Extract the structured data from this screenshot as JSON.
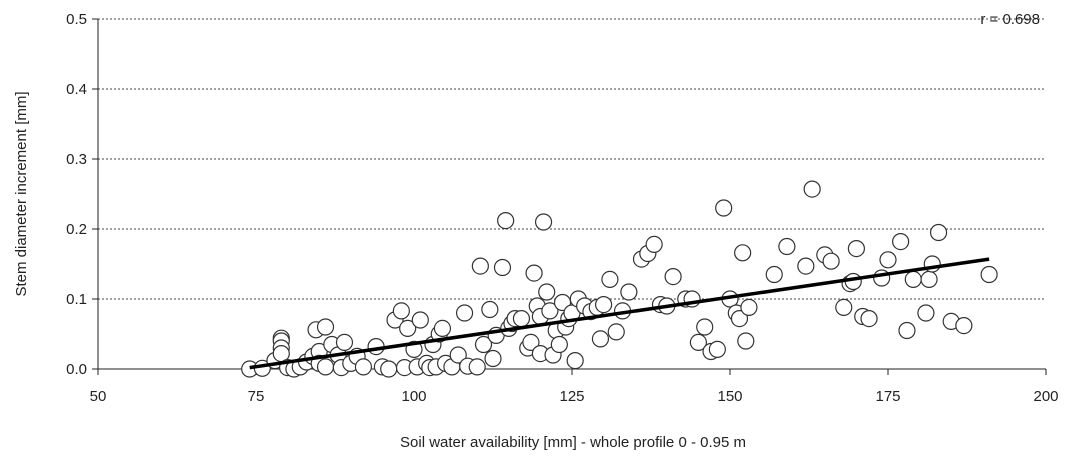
{
  "chart_data": {
    "type": "scatter",
    "xlabel": "Soil water availability [mm]  - whole profile 0 - 0.95 m",
    "ylabel": "Stem diameter increment [mm]",
    "xlim": [
      50,
      200
    ],
    "ylim": [
      0,
      0.5
    ],
    "xticks": [
      50,
      75,
      100,
      125,
      150,
      175,
      200
    ],
    "yticks": [
      0.0,
      0.1,
      0.2,
      0.3,
      0.4,
      0.5
    ],
    "xtick_labels": [
      "50",
      "75",
      "100",
      "125",
      "150",
      "175",
      "200"
    ],
    "ytick_labels": [
      "0.0",
      "0.1",
      "0.2",
      "0.3",
      "0.4",
      "0.5"
    ],
    "grid": "horizontal dashed",
    "annotation": "r = 0.698",
    "trendline": {
      "x": [
        74,
        191
      ],
      "y": [
        0.002,
        0.157
      ]
    },
    "points": [
      [
        74,
        0.0
      ],
      [
        76,
        0.001
      ],
      [
        78,
        0.012
      ],
      [
        79,
        0.044
      ],
      [
        79,
        0.04
      ],
      [
        79,
        0.03
      ],
      [
        79,
        0.022
      ],
      [
        80,
        0.002
      ],
      [
        81,
        0.0
      ],
      [
        82,
        0.003
      ],
      [
        83,
        0.01
      ],
      [
        84,
        0.018
      ],
      [
        84.5,
        0.056
      ],
      [
        85,
        0.025
      ],
      [
        85,
        0.008
      ],
      [
        86,
        0.06
      ],
      [
        86,
        0.003
      ],
      [
        87,
        0.035
      ],
      [
        88,
        0.02
      ],
      [
        88.5,
        0.002
      ],
      [
        89,
        0.038
      ],
      [
        90,
        0.008
      ],
      [
        91,
        0.018
      ],
      [
        92,
        0.003
      ],
      [
        94,
        0.032
      ],
      [
        95,
        0.003
      ],
      [
        96,
        0.0
      ],
      [
        97,
        0.07
      ],
      [
        98,
        0.083
      ],
      [
        98.5,
        0.002
      ],
      [
        99,
        0.058
      ],
      [
        100,
        0.028
      ],
      [
        100.5,
        0.003
      ],
      [
        101,
        0.07
      ],
      [
        102,
        0.008
      ],
      [
        102.5,
        0.002
      ],
      [
        103,
        0.035
      ],
      [
        103.5,
        0.003
      ],
      [
        104,
        0.05
      ],
      [
        104.5,
        0.058
      ],
      [
        105,
        0.008
      ],
      [
        106,
        0.003
      ],
      [
        107,
        0.02
      ],
      [
        108,
        0.08
      ],
      [
        108.5,
        0.004
      ],
      [
        110,
        0.003
      ],
      [
        110.5,
        0.147
      ],
      [
        111,
        0.035
      ],
      [
        112,
        0.085
      ],
      [
        112.5,
        0.015
      ],
      [
        113,
        0.048
      ],
      [
        114,
        0.145
      ],
      [
        114.5,
        0.212
      ],
      [
        115,
        0.058
      ],
      [
        115.5,
        0.065
      ],
      [
        116,
        0.072
      ],
      [
        117,
        0.072
      ],
      [
        118,
        0.03
      ],
      [
        118.5,
        0.038
      ],
      [
        119,
        0.137
      ],
      [
        119.5,
        0.09
      ],
      [
        120,
        0.022
      ],
      [
        120,
        0.075
      ],
      [
        120.5,
        0.21
      ],
      [
        121,
        0.11
      ],
      [
        121.5,
        0.083
      ],
      [
        122,
        0.02
      ],
      [
        122.5,
        0.055
      ],
      [
        123,
        0.035
      ],
      [
        123.5,
        0.095
      ],
      [
        124,
        0.06
      ],
      [
        124.5,
        0.072
      ],
      [
        125,
        0.08
      ],
      [
        125.5,
        0.012
      ],
      [
        126,
        0.1
      ],
      [
        127,
        0.09
      ],
      [
        128,
        0.082
      ],
      [
        129,
        0.088
      ],
      [
        129.5,
        0.043
      ],
      [
        130,
        0.092
      ],
      [
        131,
        0.128
      ],
      [
        132,
        0.053
      ],
      [
        133,
        0.083
      ],
      [
        134,
        0.11
      ],
      [
        136,
        0.157
      ],
      [
        137,
        0.165
      ],
      [
        138,
        0.178
      ],
      [
        139,
        0.092
      ],
      [
        140,
        0.09
      ],
      [
        141,
        0.132
      ],
      [
        143,
        0.1
      ],
      [
        144,
        0.1
      ],
      [
        145,
        0.038
      ],
      [
        146,
        0.06
      ],
      [
        147,
        0.025
      ],
      [
        148,
        0.028
      ],
      [
        149,
        0.23
      ],
      [
        150,
        0.1
      ],
      [
        151,
        0.08
      ],
      [
        151.5,
        0.072
      ],
      [
        152,
        0.166
      ],
      [
        152.5,
        0.04
      ],
      [
        153,
        0.088
      ],
      [
        157,
        0.135
      ],
      [
        159,
        0.175
      ],
      [
        162,
        0.147
      ],
      [
        163,
        0.257
      ],
      [
        165,
        0.163
      ],
      [
        166,
        0.154
      ],
      [
        168,
        0.088
      ],
      [
        169,
        0.122
      ],
      [
        169.5,
        0.125
      ],
      [
        170,
        0.172
      ],
      [
        171,
        0.075
      ],
      [
        172,
        0.072
      ],
      [
        174,
        0.13
      ],
      [
        175,
        0.156
      ],
      [
        177,
        0.182
      ],
      [
        178,
        0.055
      ],
      [
        179,
        0.128
      ],
      [
        181,
        0.08
      ],
      [
        181.5,
        0.128
      ],
      [
        182,
        0.15
      ],
      [
        183,
        0.195
      ],
      [
        185,
        0.068
      ],
      [
        187,
        0.062
      ],
      [
        191,
        0.135
      ]
    ]
  }
}
